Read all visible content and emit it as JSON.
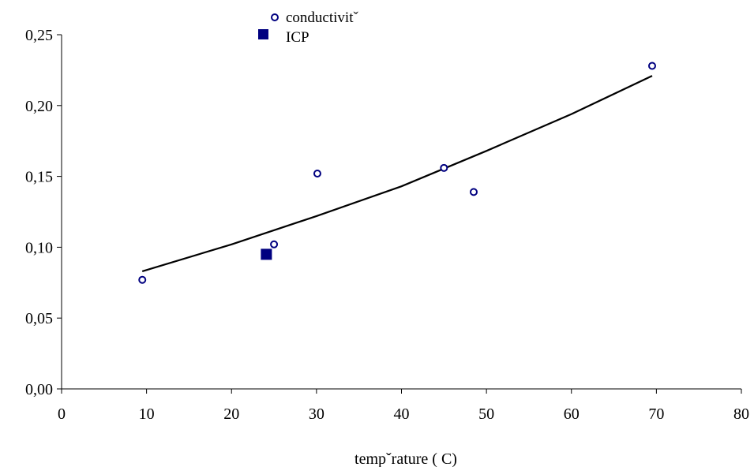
{
  "chart_data": {
    "type": "scatter",
    "title": "",
    "xlabel": "tempˇrature (   C)",
    "ylabel": "",
    "xlim": [
      0,
      80
    ],
    "ylim": [
      0,
      0.25
    ],
    "x_ticks": [
      0,
      10,
      20,
      30,
      40,
      50,
      60,
      70,
      80
    ],
    "x_tick_labels": [
      "0",
      "10",
      "20",
      "30",
      "40",
      "50",
      "60",
      "70",
      "80"
    ],
    "y_ticks": [
      0,
      0.05,
      0.1,
      0.15,
      0.2,
      0.25
    ],
    "y_tick_labels": [
      "0,00",
      "0,05",
      "0,10",
      "0,15",
      "0,20",
      "0,25"
    ],
    "grid": false,
    "legend_position": "top-center",
    "series": [
      {
        "name": "conductivitˇ",
        "marker": "open-circle",
        "color": "#000080",
        "x": [
          9.5,
          25.0,
          30.1,
          45.0,
          48.5,
          69.5
        ],
        "y": [
          0.077,
          0.102,
          0.152,
          0.156,
          0.139,
          0.228
        ]
      },
      {
        "name": "ICP",
        "marker": "filled-square",
        "color": "#000080",
        "x": [
          24.1
        ],
        "y": [
          0.095
        ]
      },
      {
        "name": "",
        "type": "line",
        "color": "#000000",
        "x": [
          9.5,
          20,
          30,
          40,
          50,
          60,
          69.5
        ],
        "y": [
          0.083,
          0.102,
          0.122,
          0.143,
          0.168,
          0.194,
          0.221
        ]
      }
    ]
  }
}
